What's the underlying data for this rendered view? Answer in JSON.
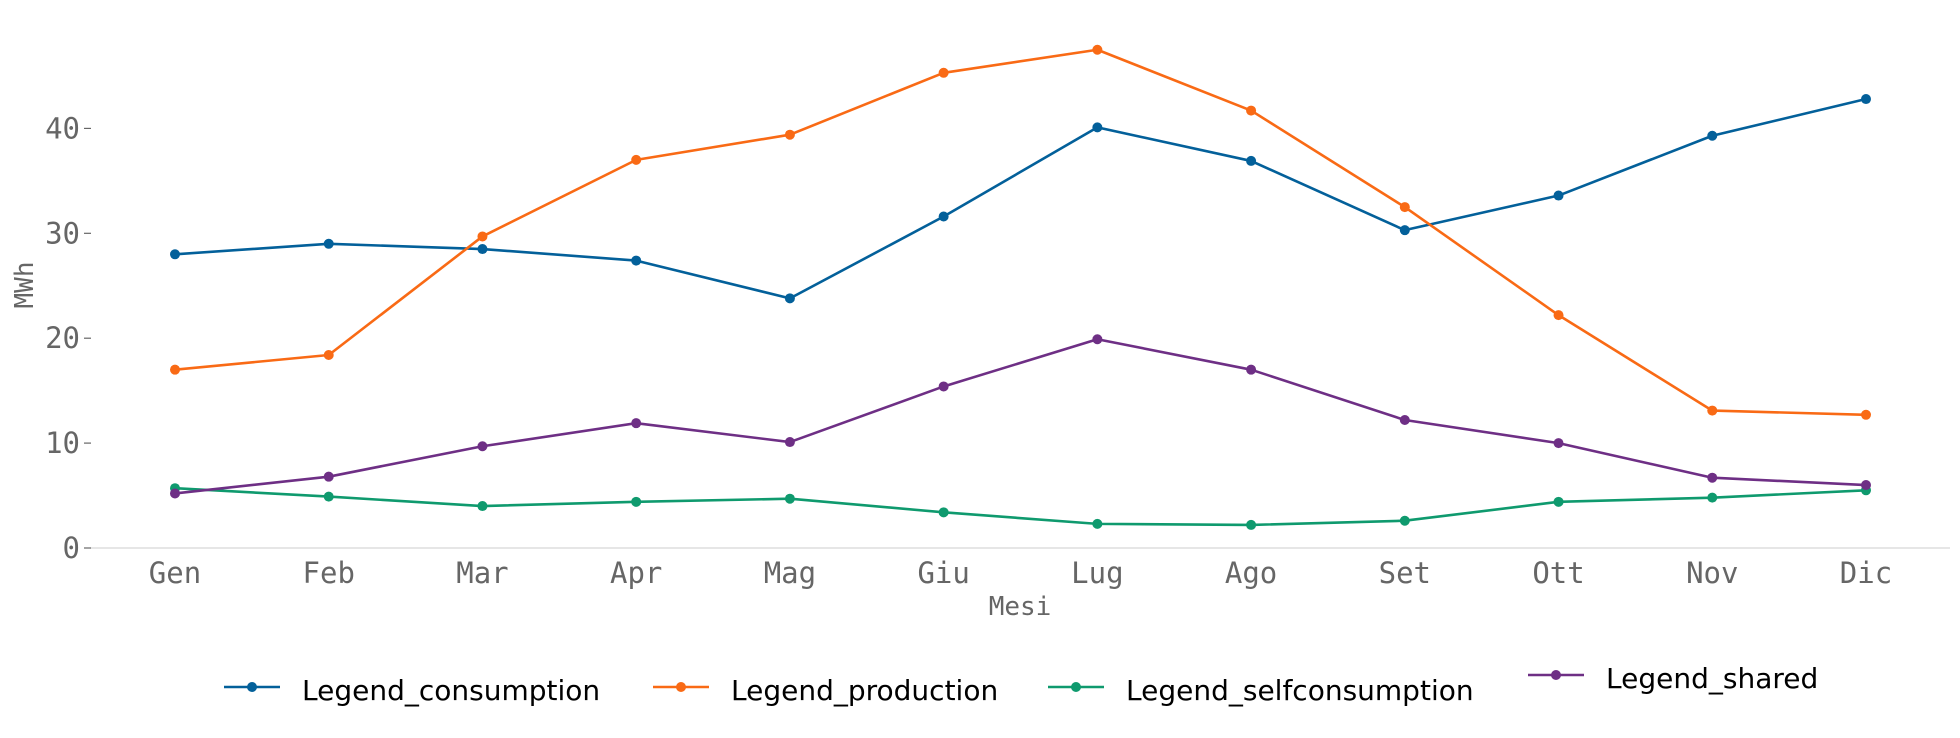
{
  "chart_data": {
    "type": "line",
    "title": "",
    "xlabel": "Mesi",
    "ylabel": "MWh",
    "categories": [
      "Gen",
      "Feb",
      "Mar",
      "Apr",
      "Mag",
      "Giu",
      "Lug",
      "Ago",
      "Set",
      "Ott",
      "Nov",
      "Dic"
    ],
    "ylim": [
      0,
      49
    ],
    "yticks": [
      "0",
      "10",
      "20",
      "30",
      "40"
    ],
    "ytick_values": [
      0,
      10,
      20,
      30,
      40
    ],
    "grid": false,
    "legend_position": "bottom",
    "series": [
      {
        "name": "Legend_consumption",
        "color": "#03609a",
        "values": [
          28.0,
          29.0,
          28.5,
          27.4,
          23.8,
          31.6,
          40.1,
          36.9,
          30.3,
          33.6,
          39.3,
          42.8
        ]
      },
      {
        "name": "Legend_production",
        "color": "#f96a15",
        "values": [
          17.0,
          18.4,
          29.7,
          37.0,
          39.4,
          45.3,
          47.5,
          41.7,
          32.5,
          22.2,
          13.1,
          12.7
        ]
      },
      {
        "name": "Legend_selfconsumption",
        "color": "#0f9a6e",
        "values": [
          5.7,
          4.9,
          4.0,
          4.4,
          4.7,
          3.4,
          2.3,
          2.2,
          2.6,
          4.4,
          4.8,
          5.5
        ]
      },
      {
        "name": "Legend_shared",
        "color": "#6e2f85",
        "values": [
          5.2,
          6.8,
          9.7,
          11.9,
          10.1,
          15.4,
          19.9,
          17.0,
          12.2,
          10.0,
          6.7,
          6.0
        ]
      }
    ]
  }
}
